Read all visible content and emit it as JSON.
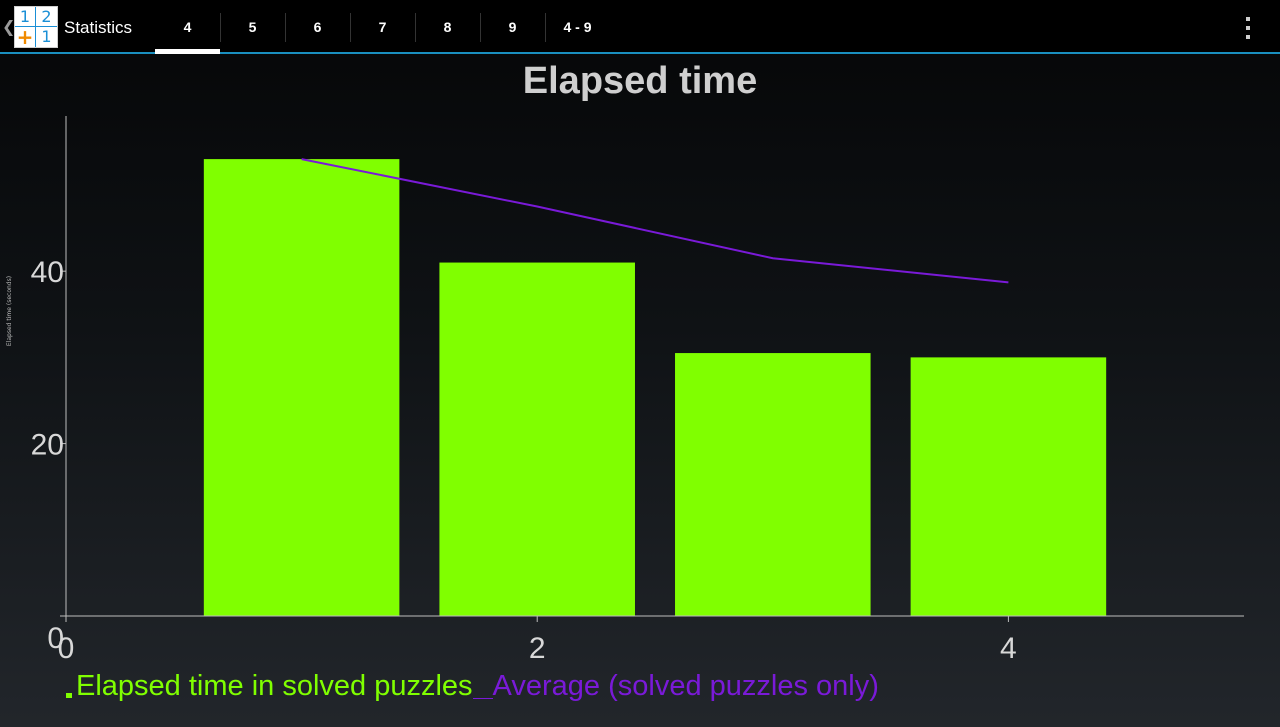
{
  "actionbar": {
    "title": "Statistics",
    "icon_digits": [
      "1",
      "2",
      "+",
      "1"
    ],
    "tabs": [
      {
        "label": "4",
        "active": true
      },
      {
        "label": "5",
        "active": false
      },
      {
        "label": "6",
        "active": false
      },
      {
        "label": "7",
        "active": false
      },
      {
        "label": "8",
        "active": false
      },
      {
        "label": "9",
        "active": false
      },
      {
        "label": "4 - 9",
        "active": false
      }
    ],
    "up_icon": "chevron-left-icon",
    "menu_icon": "overflow-menu-icon"
  },
  "colors": {
    "bar": "#80ff00",
    "line": "#7a1ad8",
    "axis": "#bdbdbd",
    "accent": "#1a8fc0"
  },
  "chart_data": {
    "type": "bar",
    "title": "Elapsed time",
    "xlabel": "",
    "ylabel": "Elapsed time (seconds)",
    "xlim": [
      0,
      5
    ],
    "ylim": [
      0,
      58
    ],
    "x_ticks": [
      "0",
      "2",
      "4"
    ],
    "y_ticks": [
      "0",
      "20",
      "40"
    ],
    "series": [
      {
        "name": "Elapsed time in solved puzzles",
        "type": "bar",
        "x": [
          1,
          2,
          3,
          4
        ],
        "values": [
          53,
          41,
          30.5,
          30
        ]
      },
      {
        "name": "Average (solved puzzles only)",
        "type": "line",
        "x": [
          1,
          2,
          3,
          4
        ],
        "values": [
          53,
          47.5,
          41.5,
          38.7
        ]
      }
    ]
  }
}
